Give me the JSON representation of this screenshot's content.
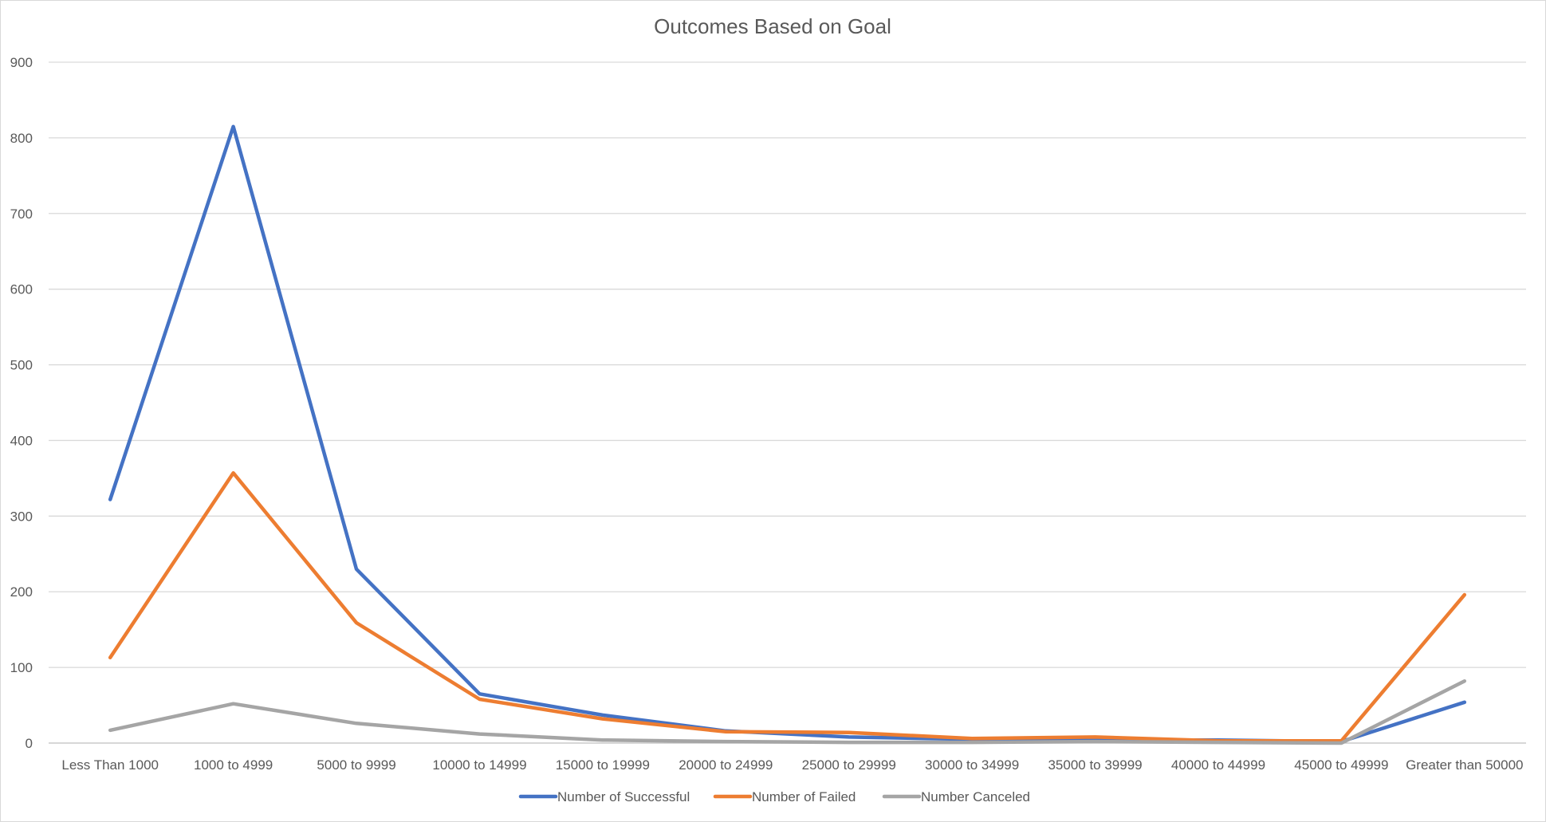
{
  "chart_data": {
    "type": "line",
    "title": "Outcomes Based on Goal",
    "xlabel": "",
    "ylabel": "",
    "ylim": [
      0,
      900
    ],
    "yticks": [
      0,
      100,
      200,
      300,
      400,
      500,
      600,
      700,
      800,
      900
    ],
    "grid": true,
    "legend_position": "bottom",
    "categories": [
      "Less Than 1000",
      "1000 to 4999",
      "5000 to 9999",
      "10000 to 14999",
      "15000 to 19999",
      "20000 to 24999",
      "25000 to 29999",
      "30000 to 34999",
      "35000 to 39999",
      "40000 to 44999",
      "45000 to 49999",
      "Greater than 50000"
    ],
    "series": [
      {
        "name": "Number of Successful",
        "color": "#4472C4",
        "values": [
          322,
          815,
          230,
          65,
          37,
          16,
          8,
          5,
          4,
          4,
          2,
          54
        ]
      },
      {
        "name": "Number of Failed",
        "color": "#ED7D31",
        "values": [
          113,
          357,
          159,
          58,
          32,
          15,
          14,
          6,
          8,
          3,
          3,
          196
        ]
      },
      {
        "name": "Number Canceled",
        "color": "#A5A5A5",
        "values": [
          17,
          52,
          26,
          12,
          4,
          2,
          1,
          1,
          2,
          1,
          0,
          82
        ]
      }
    ]
  }
}
